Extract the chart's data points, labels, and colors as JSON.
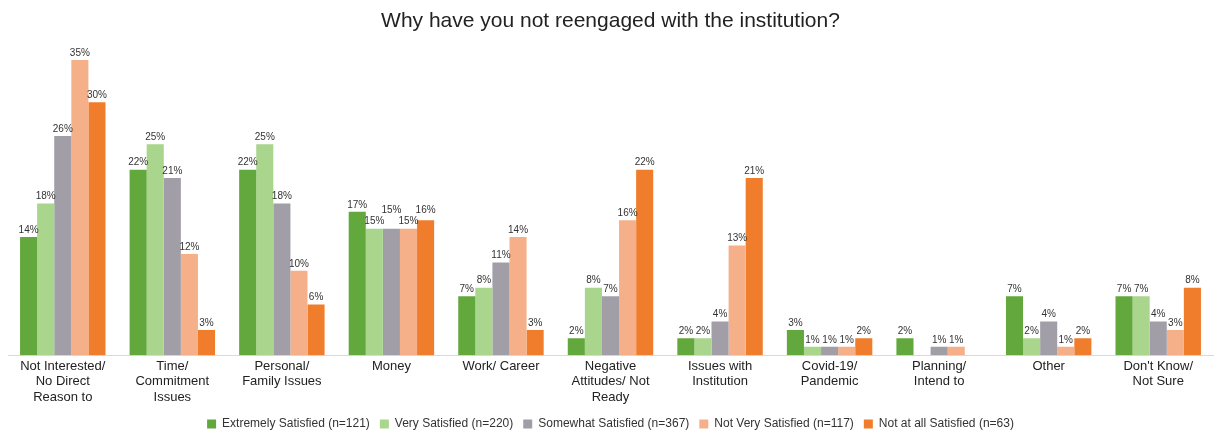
{
  "chart_data": {
    "type": "bar",
    "title": "Why have you not reengaged with the institution?",
    "categories": [
      "Not Interested/ No Direct Reason to",
      "Time/ Commitment Issues",
      "Personal/ Family Issues",
      "Money",
      "Work/ Career",
      "Negative Attitudes/ Not Ready",
      "Issues with Institution",
      "Covid-19/ Pandemic",
      "Planning/ Intend to",
      "Other",
      "Don't Know/ Not Sure"
    ],
    "series": [
      {
        "name": "Extremely Satisfied (n=121)",
        "color": "#62a83c",
        "values": [
          14,
          22,
          22,
          17,
          7,
          2,
          2,
          3,
          2,
          7,
          7
        ],
        "value_labels": [
          "14%",
          "22%",
          "22%",
          "17%",
          "7%",
          "2%",
          "2%",
          "3%",
          "2%",
          "7%",
          "7%"
        ]
      },
      {
        "name": "Very Satisfied (n=220)",
        "color": "#a9d58c",
        "values": [
          18,
          25,
          25,
          15,
          8,
          8,
          2,
          1,
          null,
          2,
          7
        ],
        "value_labels": [
          "18%",
          "25%",
          "25%",
          "15%",
          "8%",
          "8%",
          "2%",
          "1%",
          null,
          "2%",
          "7%"
        ]
      },
      {
        "name": "Somewhat Satisfied (n=367)",
        "color": "#a19ea8",
        "values": [
          26,
          21,
          18,
          15,
          11,
          7,
          4,
          1,
          1,
          4,
          4
        ],
        "value_labels": [
          "26%",
          "21%",
          "18%",
          "15%",
          "11%",
          "7%",
          "4%",
          "1%",
          "1%",
          "4%",
          "4%"
        ]
      },
      {
        "name": "Not Very Satisfied (n=117)",
        "color": "#f5b08a",
        "values": [
          35,
          12,
          10,
          15,
          14,
          16,
          13,
          1,
          1,
          1,
          3
        ],
        "value_labels": [
          "35%",
          "12%",
          "10%",
          "15%",
          "14%",
          "16%",
          "13%",
          "1%",
          "1%",
          "1%",
          "3%"
        ]
      },
      {
        "name": "Not at all Satisfied (n=63)",
        "color": "#ef7d2b",
        "values": [
          30,
          3,
          6,
          16,
          3,
          22,
          21,
          2,
          null,
          2,
          8
        ],
        "value_labels": [
          "30%",
          "3%",
          "6%",
          "16%",
          "3%",
          "22%",
          "21%",
          "2%",
          null,
          "2%",
          "8%"
        ]
      }
    ],
    "legend": "bottom",
    "grid": false
  }
}
